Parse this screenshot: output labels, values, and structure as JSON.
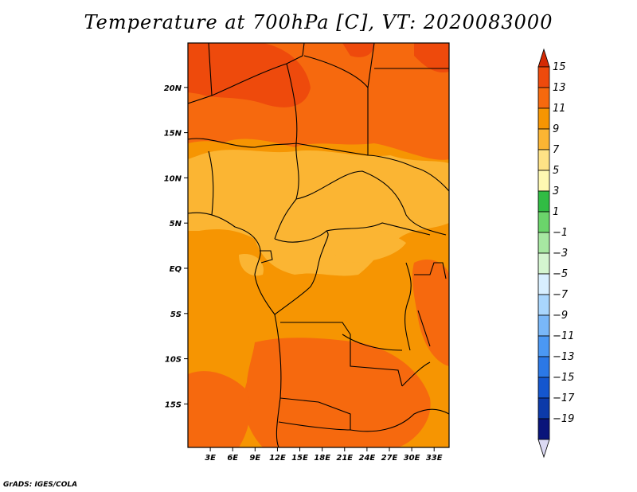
{
  "title": "Temperature at 700hPa [C], VT: 2020083000",
  "credit": "GrADS: IGES/COLA",
  "map": {
    "lat_ticks": [
      "20N",
      "15N",
      "10N",
      "5N",
      "EQ",
      "5S",
      "10S",
      "15S"
    ],
    "lon_ticks": [
      "3E",
      "6E",
      "9E",
      "12E",
      "15E",
      "18E",
      "21E",
      "24E",
      "27E",
      "30E",
      "33E"
    ],
    "lon_range_deg": [
      0,
      35
    ],
    "lat_range_deg": [
      -20,
      24
    ]
  },
  "colorbar": {
    "labels": [
      "15",
      "13",
      "11",
      "9",
      "7",
      "5",
      "3",
      "1",
      "−1",
      "−3",
      "−5",
      "−7",
      "−9",
      "−11",
      "−13",
      "−15",
      "−17",
      "−19"
    ],
    "top_color": "#d42a04",
    "colors": [
      "#ee4a0c",
      "#f6690e",
      "#f69502",
      "#fbb533",
      "#fee286",
      "#fef8b2",
      "#31bc44",
      "#6bd46b",
      "#a7e7a2",
      "#d4f5d0",
      "#d8efff",
      "#a9d6fd",
      "#79b7f8",
      "#4b98f3",
      "#2b78e6",
      "#1456ce",
      "#0c3aa9",
      "#09147a"
    ],
    "bottom_color": "#dbd9f3"
  }
}
